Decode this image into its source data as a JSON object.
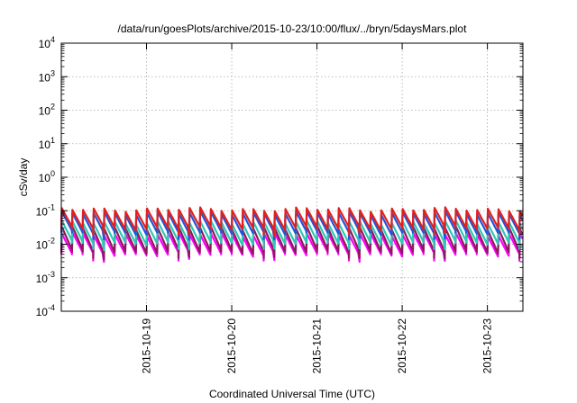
{
  "chart_data": {
    "type": "line",
    "title": "/data/run/goesPlots/archive/2015-10-23/10:00/flux/../bryn/5daysMars.plot",
    "xlabel": "Coordinated Universal Time (UTC)",
    "ylabel": "cSv/day",
    "xlim": [
      "2015-10-18 00:00",
      "2015-10-23 10:00"
    ],
    "ylim": [
      0.0001,
      10000
    ],
    "yscale": "log",
    "grid": true,
    "legend": "none",
    "x_tick_labels": [
      "2015-10-19",
      "2015-10-20",
      "2015-10-21",
      "2015-10-22",
      "2015-10-23"
    ],
    "y_tick_labels": [
      {
        "base": "10",
        "exp": "4"
      },
      {
        "base": "10",
        "exp": "3"
      },
      {
        "base": "10",
        "exp": "2"
      },
      {
        "base": "10",
        "exp": "1"
      },
      {
        "base": "10",
        "exp": "0"
      },
      {
        "base": "10",
        "exp": "-1"
      },
      {
        "base": "10",
        "exp": "-2"
      },
      {
        "base": "10",
        "exp": "-3"
      },
      {
        "base": "10",
        "exp": "-4"
      }
    ],
    "cycle_hours": 3,
    "series": [
      {
        "color": "#ff00ff",
        "peak": 0.02,
        "trough": 0.005
      },
      {
        "color": "#8b1a5a",
        "peak": 0.03,
        "trough": 0.006
      },
      {
        "color": "#2ec8b4",
        "peak": 0.045,
        "trough": 0.011
      },
      {
        "color": "#2255dd",
        "peak": 0.085,
        "trough": 0.022
      },
      {
        "color": "#e02020",
        "peak": 0.11,
        "trough": 0.03
      }
    ]
  }
}
